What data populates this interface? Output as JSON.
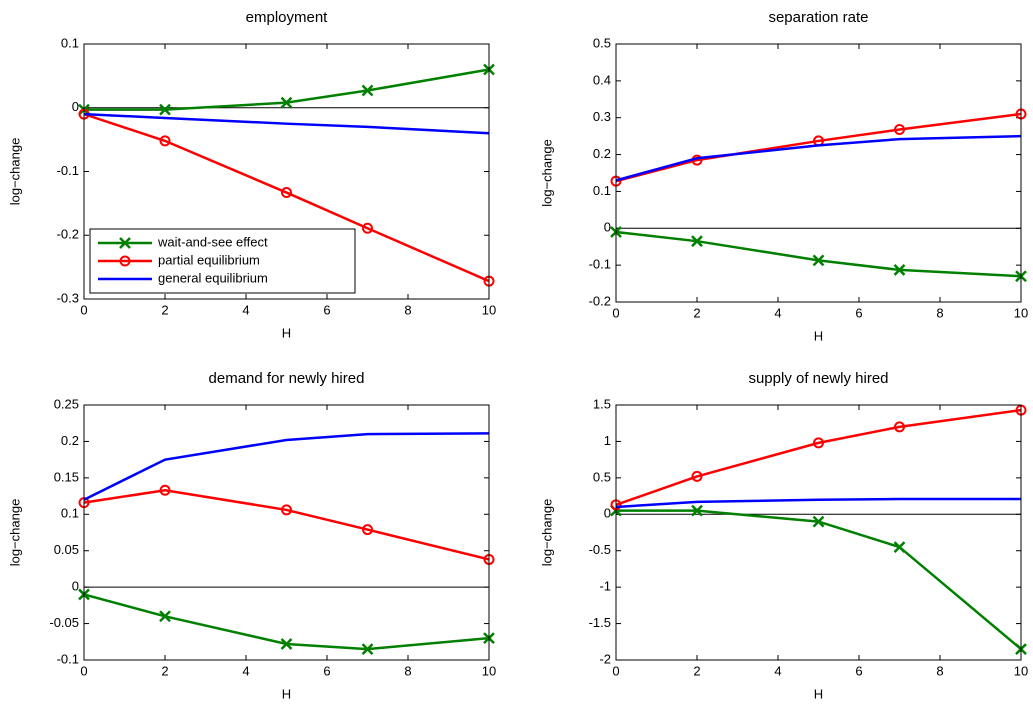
{
  "chart_data": [
    {
      "type": "line",
      "title": "employment",
      "xlabel": "H",
      "ylabel": "log−change",
      "x": [
        0,
        2,
        5,
        7,
        10
      ],
      "xlim": [
        0,
        10
      ],
      "xticks": [
        0,
        2,
        4,
        6,
        8,
        10
      ],
      "ylim": [
        -0.3,
        0.1
      ],
      "yticks": [
        -0.3,
        -0.2,
        -0.1,
        0,
        0.1
      ],
      "zero_line": true,
      "legend": "lower left",
      "series": [
        {
          "name": "wait-and-see effect",
          "color": "#008000",
          "marker": "x",
          "values": [
            -0.003,
            -0.003,
            0.008,
            0.027,
            0.06
          ]
        },
        {
          "name": "partial equilibrium",
          "color": "#ff0000",
          "marker": "o",
          "values": [
            -0.01,
            -0.052,
            -0.133,
            -0.189,
            -0.272
          ]
        },
        {
          "name": "general equilibrium",
          "color": "#0000ff",
          "marker": "none",
          "values": [
            -0.01,
            -0.016,
            -0.025,
            -0.03,
            -0.04
          ]
        }
      ]
    },
    {
      "type": "line",
      "title": "separation rate",
      "xlabel": "H",
      "ylabel": "log−change",
      "x": [
        0,
        2,
        5,
        7,
        10
      ],
      "xlim": [
        0,
        10
      ],
      "xticks": [
        0,
        2,
        4,
        6,
        8,
        10
      ],
      "ylim": [
        -0.2,
        0.5
      ],
      "yticks": [
        -0.2,
        -0.1,
        0,
        0.1,
        0.2,
        0.3,
        0.4,
        0.5
      ],
      "zero_line": true,
      "series": [
        {
          "color": "#008000",
          "marker": "x",
          "values": [
            -0.01,
            -0.035,
            -0.087,
            -0.113,
            -0.13
          ]
        },
        {
          "color": "#ff0000",
          "marker": "o",
          "values": [
            0.128,
            0.185,
            0.237,
            0.268,
            0.31
          ]
        },
        {
          "color": "#0000ff",
          "marker": "none",
          "values": [
            0.13,
            0.19,
            0.225,
            0.242,
            0.25
          ]
        }
      ]
    },
    {
      "type": "line",
      "title": "demand for newly hired",
      "xlabel": "H",
      "ylabel": "log−change",
      "x": [
        0,
        2,
        5,
        7,
        10
      ],
      "xlim": [
        0,
        10
      ],
      "xticks": [
        0,
        2,
        4,
        6,
        8,
        10
      ],
      "ylim": [
        -0.1,
        0.25
      ],
      "yticks": [
        -0.1,
        -0.05,
        0,
        0.05,
        0.1,
        0.15,
        0.2,
        0.25
      ],
      "zero_line": true,
      "series": [
        {
          "color": "#008000",
          "marker": "x",
          "values": [
            -0.01,
            -0.04,
            -0.078,
            -0.085,
            -0.07
          ]
        },
        {
          "color": "#ff0000",
          "marker": "o",
          "values": [
            0.116,
            0.133,
            0.106,
            0.079,
            0.038
          ]
        },
        {
          "color": "#0000ff",
          "marker": "none",
          "values": [
            0.12,
            0.175,
            0.202,
            0.21,
            0.211
          ]
        }
      ]
    },
    {
      "type": "line",
      "title": "supply of newly hired",
      "xlabel": "H",
      "ylabel": "log−change",
      "x": [
        0,
        2,
        5,
        7,
        10
      ],
      "xlim": [
        0,
        10
      ],
      "xticks": [
        0,
        2,
        4,
        6,
        8,
        10
      ],
      "ylim": [
        -2,
        1.5
      ],
      "yticks": [
        -2,
        -1.5,
        -1,
        -0.5,
        0,
        0.5,
        1,
        1.5
      ],
      "zero_line": true,
      "series": [
        {
          "color": "#008000",
          "marker": "x",
          "values": [
            0.05,
            0.05,
            -0.1,
            -0.45,
            -1.85
          ]
        },
        {
          "color": "#ff0000",
          "marker": "o",
          "values": [
            0.13,
            0.52,
            0.98,
            1.2,
            1.43
          ]
        },
        {
          "color": "#0000ff",
          "marker": "none",
          "values": [
            0.1,
            0.17,
            0.2,
            0.21,
            0.21
          ]
        }
      ]
    }
  ]
}
